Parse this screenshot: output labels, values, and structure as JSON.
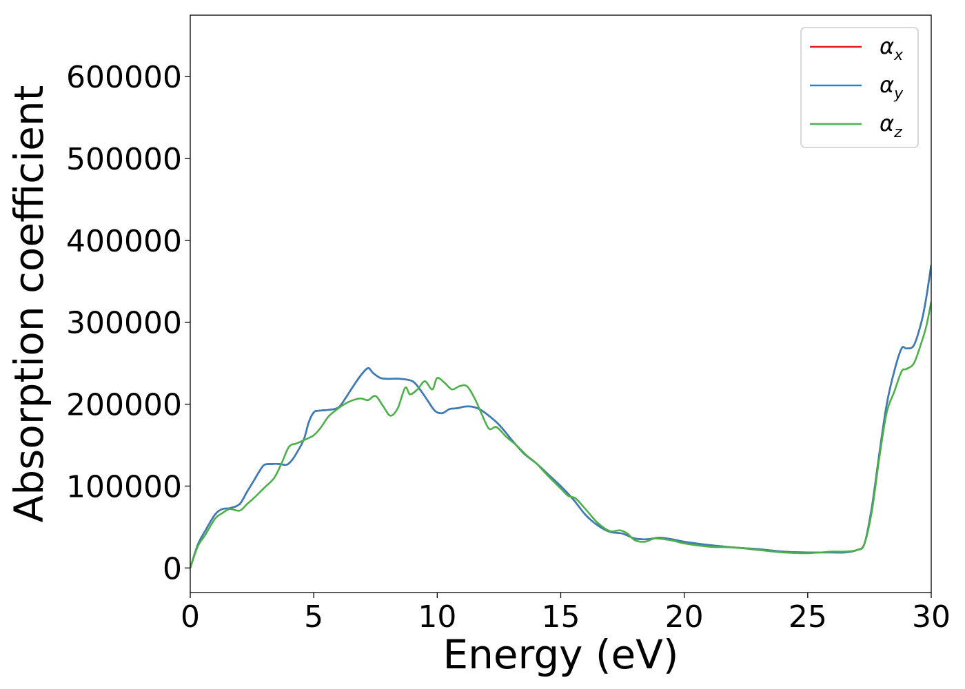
{
  "chart_data": {
    "type": "line",
    "title": "",
    "xlabel": "Energy (eV)",
    "ylabel": "Absorption coefficient",
    "xlim": [
      0,
      30
    ],
    "ylim": [
      -30000,
      675000
    ],
    "xticks": [
      0,
      5,
      10,
      15,
      20,
      25,
      30
    ],
    "xtick_labels": [
      "0",
      "5",
      "10",
      "15",
      "20",
      "25",
      "30"
    ],
    "yticks": [
      0,
      100000,
      200000,
      300000,
      400000,
      500000,
      600000
    ],
    "ytick_labels": [
      "0",
      "100000",
      "200000",
      "300000",
      "400000",
      "500000",
      "600000"
    ],
    "grid": false,
    "legend": {
      "placement": "top-right",
      "entries": [
        {
          "symbol": "α",
          "sub": "x",
          "color": "#e41a1c"
        },
        {
          "symbol": "α",
          "sub": "y",
          "color": "#377eb8"
        },
        {
          "symbol": "α",
          "sub": "z",
          "color": "#4daf4a"
        }
      ]
    },
    "series": [
      {
        "name": "αx",
        "color": "#e41a1c",
        "x": [
          0,
          0.3,
          0.6,
          1.0,
          1.3,
          1.6,
          2.0,
          2.3,
          2.6,
          2.8,
          3.0,
          3.3,
          3.6,
          3.9,
          4.1,
          4.3,
          4.6,
          4.8,
          5.0,
          5.2,
          5.6,
          6.0,
          6.3,
          6.6,
          6.9,
          7.2,
          7.4,
          7.7,
          8.0,
          8.5,
          9.0,
          9.3,
          9.6,
          9.9,
          10.2,
          10.5,
          10.8,
          11.1,
          11.4,
          11.7,
          12.0,
          12.5,
          13.0,
          13.5,
          14.0,
          14.5,
          15.0,
          15.5,
          16.0,
          16.5,
          17.0,
          17.5,
          18.0,
          18.5,
          19.0,
          19.5,
          20.0,
          21.0,
          22.0,
          23.0,
          24.0,
          25.0,
          26.0,
          26.5,
          27.0,
          27.3,
          27.6,
          27.9,
          28.2,
          28.5,
          28.8,
          29.0,
          29.3,
          29.6,
          29.8,
          30.0
        ],
        "y": [
          0,
          28000,
          45000,
          65000,
          72000,
          73000,
          78000,
          93000,
          108000,
          118000,
          126000,
          127000,
          127000,
          126000,
          131000,
          140000,
          157000,
          178000,
          190000,
          192000,
          193000,
          196000,
          208000,
          222000,
          235000,
          244000,
          238000,
          232000,
          231000,
          231000,
          228000,
          218000,
          205000,
          192000,
          189000,
          194000,
          195000,
          197000,
          197000,
          194000,
          188000,
          175000,
          157000,
          140000,
          128000,
          114000,
          100000,
          84000,
          65000,
          52000,
          44000,
          42000,
          36000,
          35000,
          37000,
          35000,
          32000,
          28000,
          25000,
          23000,
          20000,
          19000,
          19000,
          19000,
          22000,
          30000,
          75000,
          140000,
          200000,
          240000,
          268000,
          268000,
          272000,
          300000,
          330000,
          370000
        ]
      },
      {
        "name": "αy",
        "color": "#377eb8",
        "x": [
          0,
          0.3,
          0.6,
          1.0,
          1.3,
          1.6,
          2.0,
          2.3,
          2.6,
          2.8,
          3.0,
          3.3,
          3.6,
          3.9,
          4.1,
          4.3,
          4.6,
          4.8,
          5.0,
          5.2,
          5.6,
          6.0,
          6.3,
          6.6,
          6.9,
          7.2,
          7.4,
          7.7,
          8.0,
          8.5,
          9.0,
          9.3,
          9.6,
          9.9,
          10.2,
          10.5,
          10.8,
          11.1,
          11.4,
          11.7,
          12.0,
          12.5,
          13.0,
          13.5,
          14.0,
          14.5,
          15.0,
          15.5,
          16.0,
          16.5,
          17.0,
          17.5,
          18.0,
          18.5,
          19.0,
          19.5,
          20.0,
          21.0,
          22.0,
          23.0,
          24.0,
          25.0,
          26.0,
          26.5,
          27.0,
          27.3,
          27.6,
          27.9,
          28.2,
          28.5,
          28.8,
          29.0,
          29.3,
          29.6,
          29.8,
          30.0
        ],
        "y": [
          0,
          28000,
          45000,
          65000,
          72000,
          73000,
          78000,
          93000,
          108000,
          118000,
          126000,
          127000,
          127000,
          126000,
          131000,
          140000,
          157000,
          178000,
          190000,
          192000,
          193000,
          196000,
          208000,
          222000,
          235000,
          244000,
          238000,
          232000,
          231000,
          231000,
          228000,
          218000,
          205000,
          192000,
          189000,
          194000,
          195000,
          197000,
          197000,
          194000,
          188000,
          175000,
          157000,
          140000,
          128000,
          114000,
          100000,
          84000,
          65000,
          52000,
          44000,
          42000,
          36000,
          35000,
          37000,
          35000,
          32000,
          28000,
          25000,
          23000,
          20000,
          19000,
          19000,
          19000,
          22000,
          30000,
          75000,
          140000,
          200000,
          240000,
          268000,
          268000,
          272000,
          300000,
          330000,
          370000
        ]
      },
      {
        "name": "αz",
        "color": "#4daf4a",
        "x": [
          0,
          0.3,
          0.6,
          1.0,
          1.3,
          1.6,
          2.0,
          2.3,
          2.6,
          3.0,
          3.4,
          3.7,
          4.0,
          4.3,
          4.6,
          5.0,
          5.3,
          5.6,
          6.0,
          6.3,
          6.6,
          6.9,
          7.2,
          7.5,
          7.8,
          8.1,
          8.4,
          8.7,
          8.9,
          9.2,
          9.5,
          9.8,
          10.0,
          10.3,
          10.6,
          10.9,
          11.2,
          11.5,
          11.8,
          12.1,
          12.4,
          12.8,
          13.2,
          13.6,
          14.0,
          14.5,
          15.0,
          15.3,
          15.6,
          16.0,
          16.5,
          17.0,
          17.4,
          17.7,
          18.0,
          18.4,
          18.8,
          19.2,
          19.6,
          20.0,
          21.0,
          22.0,
          23.0,
          24.0,
          25.0,
          26.0,
          26.5,
          27.0,
          27.3,
          27.6,
          27.9,
          28.2,
          28.5,
          28.8,
          29.0,
          29.3,
          29.6,
          29.8,
          30.0
        ],
        "y": [
          0,
          26000,
          40000,
          60000,
          67000,
          72000,
          70000,
          78000,
          86000,
          98000,
          110000,
          128000,
          148000,
          152000,
          156000,
          162000,
          172000,
          185000,
          195000,
          201000,
          205000,
          207000,
          205000,
          210000,
          198000,
          186000,
          195000,
          220000,
          212000,
          218000,
          228000,
          218000,
          232000,
          226000,
          218000,
          222000,
          222000,
          208000,
          188000,
          170000,
          172000,
          160000,
          150000,
          138000,
          128000,
          112000,
          97000,
          88000,
          85000,
          72000,
          55000,
          45000,
          46000,
          42000,
          34000,
          32000,
          36000,
          35000,
          33000,
          30000,
          26000,
          25000,
          22000,
          19000,
          18000,
          20000,
          20000,
          22000,
          30000,
          70000,
          135000,
          190000,
          215000,
          240000,
          243000,
          250000,
          275000,
          295000,
          325000
        ]
      }
    ]
  }
}
